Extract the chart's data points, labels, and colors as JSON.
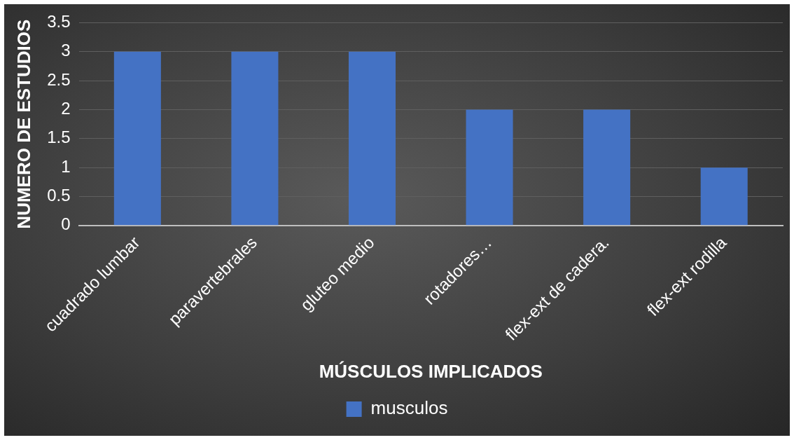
{
  "chart_data": {
    "type": "bar",
    "xlabel": "MÚSCULOS IMPLICADOS",
    "ylabel": "NUMERO DE ESTUDIOS",
    "categories": [
      "cuadrado lumbar",
      "paravertebrales",
      "gluteo medio",
      "rotadores…",
      "flex-ext de cadera.",
      "flex-ext rodilla"
    ],
    "series": [
      {
        "name": "musculos",
        "color": "#4472c4",
        "values": [
          3,
          3,
          3,
          2,
          2,
          1
        ]
      }
    ],
    "ylim": [
      0,
      3.5
    ],
    "yticks": [
      0,
      0.5,
      1,
      1.5,
      2,
      2.5,
      3,
      3.5
    ],
    "grid": "y",
    "legend": "bottom"
  }
}
